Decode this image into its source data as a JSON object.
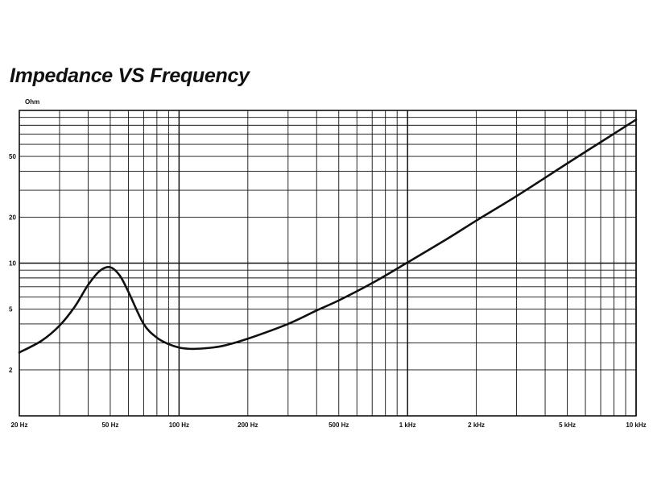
{
  "chart_data": {
    "type": "line",
    "title": "Impedance VS Frequency",
    "ylabel": "Ohm",
    "xlabel": "",
    "x_scale": "log",
    "y_scale": "log",
    "xlim": [
      20,
      10000
    ],
    "ylim": [
      1,
      100
    ],
    "grid": true,
    "legend": "none",
    "x_tick_labels": [
      {
        "value": 20,
        "label": "20 Hz"
      },
      {
        "value": 50,
        "label": "50 Hz"
      },
      {
        "value": 100,
        "label": "100 Hz"
      },
      {
        "value": 200,
        "label": "200 Hz"
      },
      {
        "value": 500,
        "label": "500 Hz"
      },
      {
        "value": 1000,
        "label": "1 kHz"
      },
      {
        "value": 2000,
        "label": "2 kHz"
      },
      {
        "value": 5000,
        "label": "5 kHz"
      },
      {
        "value": 10000,
        "label": "10 kHz"
      }
    ],
    "y_tick_labels": [
      {
        "value": 2,
        "label": "2"
      },
      {
        "value": 5,
        "label": "5"
      },
      {
        "value": 10,
        "label": "10"
      },
      {
        "value": 20,
        "label": "20"
      },
      {
        "value": 50,
        "label": "50"
      }
    ],
    "series": [
      {
        "color": "#111111",
        "x": [
          20,
          25,
          30,
          35,
          40,
          45,
          50,
          55,
          60,
          70,
          80,
          90,
          100,
          110,
          120,
          140,
          160,
          200,
          300,
          400,
          500,
          700,
          1000,
          1500,
          2000,
          3000,
          5000,
          7000,
          10000
        ],
        "y": [
          2.6,
          3.1,
          3.9,
          5.2,
          7.2,
          8.9,
          9.4,
          8.3,
          6.5,
          4.0,
          3.25,
          2.95,
          2.8,
          2.75,
          2.75,
          2.8,
          2.9,
          3.2,
          4.0,
          4.9,
          5.7,
          7.4,
          10.1,
          14.5,
          19.0,
          27.5,
          45.0,
          62.0,
          87.0
        ]
      }
    ]
  }
}
